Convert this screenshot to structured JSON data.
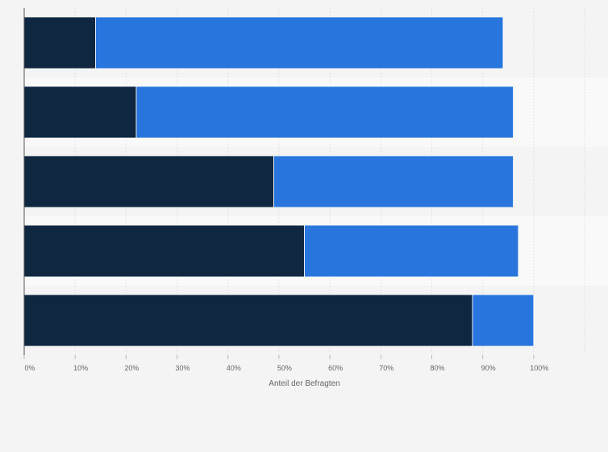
{
  "chart_data": {
    "type": "bar",
    "orientation": "horizontal",
    "stacked": true,
    "categories": [
      "",
      "",
      "",
      "",
      ""
    ],
    "series": [
      {
        "values": [
          14,
          22,
          49,
          55,
          88
        ],
        "color": "#0f2740"
      },
      {
        "values": [
          80,
          74,
          47,
          42,
          12
        ],
        "color": "#2876dd"
      }
    ],
    "xlabel": "Anteil der Befragten",
    "xlim": [
      0,
      110
    ],
    "xticks": [
      0,
      10,
      20,
      30,
      40,
      50,
      60,
      70,
      80,
      90,
      100
    ],
    "tick_format": "{v}%",
    "grid": true,
    "band_colors": [
      "#f4f4f4",
      "#f9f9f9"
    ]
  }
}
